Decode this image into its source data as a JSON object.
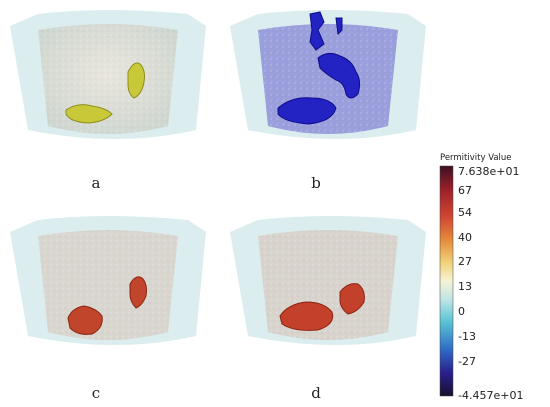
{
  "panels": [
    {
      "label": "a",
      "blob_color": "#c8c838",
      "blob_shadow": "#8e8e1e",
      "volume_tint": "#d8d9cf"
    },
    {
      "label": "b",
      "blob_color": "#2323c4",
      "blob_shadow": "#0d0d86",
      "volume_tint": "#8f93d8"
    },
    {
      "label": "c",
      "blob_color": "#c0452a",
      "blob_shadow": "#8a2412",
      "volume_tint": "#d9d6cf"
    },
    {
      "label": "d",
      "blob_color": "#c3412a",
      "blob_shadow": "#8a2412",
      "volume_tint": "#d8d3cc"
    }
  ],
  "colorbar": {
    "title": "Permitivity Value",
    "max_label": "7.638e+01",
    "min_label": "-4.457e+01",
    "ticks": [
      "67",
      "54",
      "40",
      "27",
      "13",
      "0",
      "-13",
      "-27"
    ],
    "colors": [
      "#3a1120",
      "#9a1f2a",
      "#cf4632",
      "#e58a3a",
      "#f0d27a",
      "#f6f3d5",
      "#bfe5e6",
      "#58c2d4",
      "#2f69c4",
      "#2a1f8c",
      "#16102d"
    ]
  }
}
